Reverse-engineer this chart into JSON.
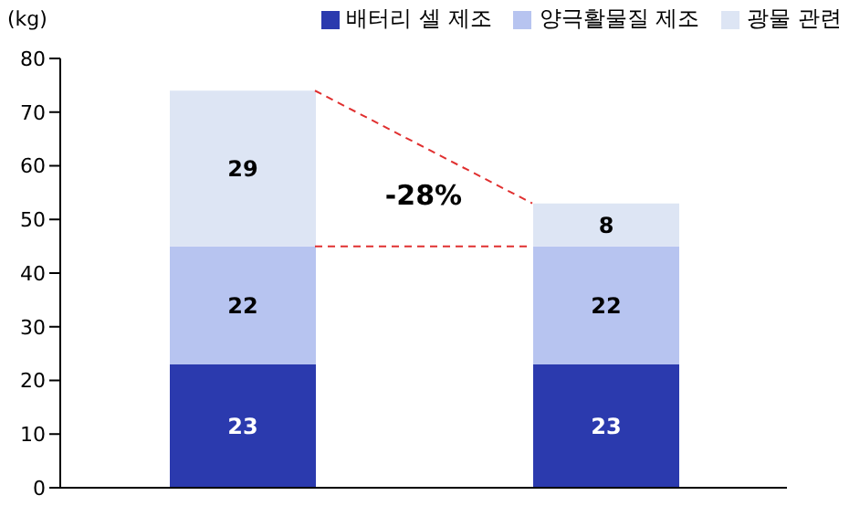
{
  "chart_data": {
    "type": "bar",
    "stacked": true,
    "ylabel": "(kg)",
    "categories": [
      null,
      null
    ],
    "series": [
      {
        "name": "배터리 셀 제조",
        "color": "#2b3aae",
        "values": [
          23,
          23
        ]
      },
      {
        "name": "양극활물질 제조",
        "color": "#b7c4f0",
        "values": [
          22,
          22
        ]
      },
      {
        "name": "광물 관련",
        "color": "#dde5f4",
        "values": [
          29,
          8
        ]
      }
    ],
    "ylim": [
      0,
      80
    ],
    "yticks": [
      0,
      10,
      20,
      30,
      40,
      50,
      60,
      70,
      80
    ],
    "grid": false,
    "legend": "top right",
    "data_labels": true,
    "annotations": [
      "-28%"
    ]
  }
}
